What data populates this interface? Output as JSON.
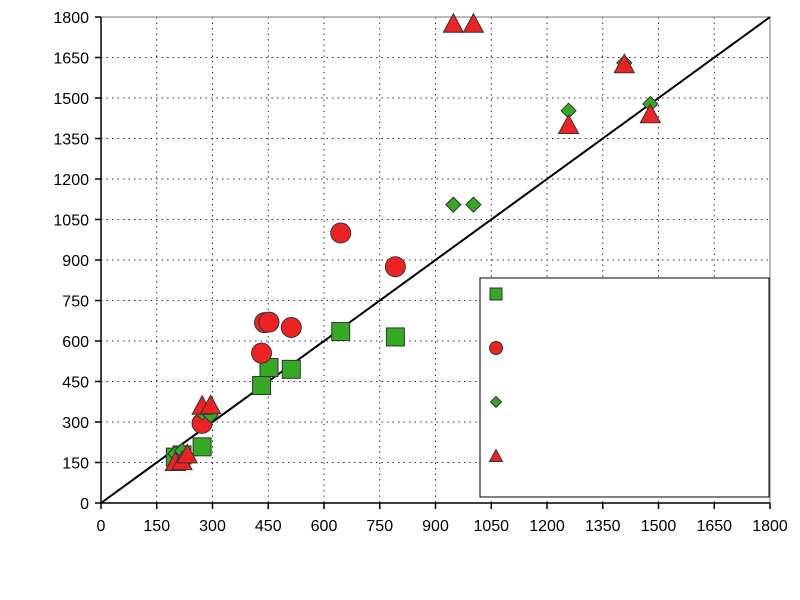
{
  "chart_data": {
    "type": "scatter",
    "xlim": [
      0,
      1800
    ],
    "ylim": [
      0,
      1800
    ],
    "x_ticks": [
      0,
      150,
      300,
      450,
      600,
      750,
      900,
      1050,
      1200,
      1350,
      1500,
      1650,
      1800
    ],
    "y_ticks": [
      0,
      150,
      300,
      450,
      600,
      750,
      900,
      1050,
      1200,
      1350,
      1500,
      1650,
      1800
    ],
    "x_tick_labels": [
      "0",
      "150",
      "300",
      "450",
      "600",
      "750",
      "900",
      "1050",
      "1200",
      "1350",
      "1500",
      "1650",
      "1800"
    ],
    "y_tick_labels": [
      "0",
      "150",
      "300",
      "450",
      "600",
      "750",
      "900",
      "1050",
      "1200",
      "1350",
      "1500",
      "1650",
      "1800"
    ],
    "grid": true,
    "legend_position": "bottom-right",
    "reference_line": {
      "from": [
        0,
        0
      ],
      "to": [
        1800,
        1800
      ],
      "color": "#000000"
    },
    "series": [
      {
        "marker": "square",
        "color": "#33aa22",
        "points": [
          [
            200,
            170
          ],
          [
            218,
            178
          ],
          [
            272,
            208
          ],
          [
            432,
            435
          ],
          [
            452,
            502
          ],
          [
            512,
            495
          ],
          [
            645,
            635
          ],
          [
            792,
            615
          ]
        ]
      },
      {
        "marker": "circle",
        "color": "#ee2222",
        "points": [
          [
            272,
            295
          ],
          [
            432,
            555
          ],
          [
            440,
            668
          ],
          [
            452,
            670
          ],
          [
            512,
            650
          ],
          [
            645,
            1000
          ],
          [
            792,
            875
          ]
        ]
      },
      {
        "marker": "diamond",
        "color": "#33aa22",
        "points": [
          [
            200,
            182
          ],
          [
            218,
            193
          ],
          [
            272,
            335
          ],
          [
            295,
            325
          ],
          [
            948,
            1105
          ],
          [
            1002,
            1105
          ],
          [
            1258,
            1453
          ],
          [
            1408,
            1630
          ],
          [
            1478,
            1478
          ]
        ]
      },
      {
        "marker": "triangle",
        "color": "#ee2222",
        "points": [
          [
            200,
            152
          ],
          [
            218,
            155
          ],
          [
            232,
            180
          ],
          [
            272,
            360
          ],
          [
            295,
            362
          ],
          [
            948,
            1775
          ],
          [
            1002,
            1775
          ],
          [
            1258,
            1400
          ],
          [
            1408,
            1625
          ],
          [
            1478,
            1440
          ]
        ]
      }
    ]
  }
}
